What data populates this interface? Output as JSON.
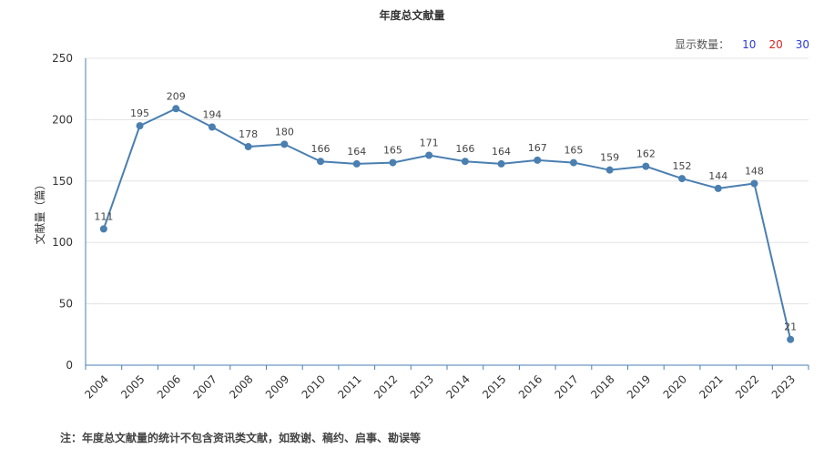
{
  "header": {
    "title": "年度总文献量"
  },
  "controls": {
    "show_count_label": "显示数量：",
    "options": [
      {
        "label": "10",
        "color": "#2b3bd9"
      },
      {
        "label": "20",
        "color": "#e02020"
      },
      {
        "label": "30",
        "color": "#2b3bd9"
      }
    ]
  },
  "footnote": "注：年度总文献量的统计不包含资讯类文献，如致谢、稿约、启事、勘误等",
  "chart_data": {
    "type": "line",
    "ylabel": "文献量（篇）",
    "xlabel": "",
    "ylim": [
      0,
      250
    ],
    "yticks": [
      0,
      50,
      100,
      150,
      200,
      250
    ],
    "grid": true,
    "color": "#4a7fb0",
    "categories": [
      "2004",
      "2005",
      "2006",
      "2007",
      "2008",
      "2009",
      "2010",
      "2011",
      "2012",
      "2013",
      "2014",
      "2015",
      "2016",
      "2017",
      "2018",
      "2019",
      "2020",
      "2021",
      "2022",
      "2023"
    ],
    "values": [
      111,
      195,
      209,
      194,
      178,
      180,
      166,
      164,
      165,
      171,
      166,
      164,
      167,
      165,
      159,
      162,
      152,
      144,
      148,
      21
    ]
  }
}
